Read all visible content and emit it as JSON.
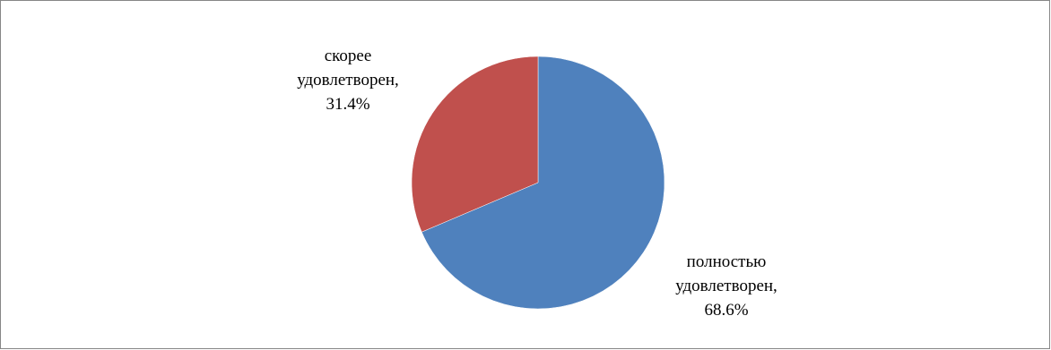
{
  "chart_data": {
    "type": "pie",
    "title": "",
    "slices": [
      {
        "name": "полностью удовлетворен",
        "value": 68.6,
        "label_lines": [
          "полностью",
          "удовлетворен,",
          "68.6%"
        ],
        "color": "#4F81BD"
      },
      {
        "name": "скорее удовлетворен",
        "value": 31.4,
        "label_lines": [
          "скорее",
          "удовлетворен,",
          "31.4%"
        ],
        "color": "#C0504D"
      }
    ],
    "legend": "none",
    "start_angle": "12 o'clock",
    "direction": "clockwise"
  }
}
